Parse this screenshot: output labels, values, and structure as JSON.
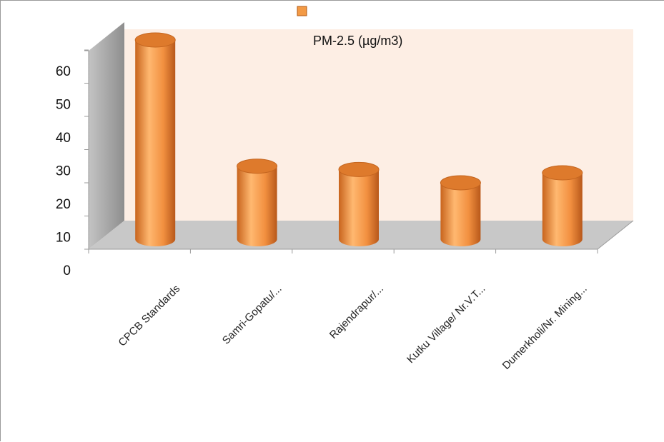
{
  "chart_data": {
    "type": "bar",
    "style": "3d-cylinder",
    "title": "",
    "xlabel": "",
    "ylabel": "",
    "categories": [
      "CPCB Standards",
      "Samri-Gopatu/...",
      "Rajendrapur/...",
      "Kutku Village/ Nr.V.T...",
      "Dumerkholi/Nr. Mining..."
    ],
    "series": [
      {
        "name": "PM-2.5 (µg/m3)",
        "values": [
          60,
          22,
          21,
          17,
          20
        ],
        "color": "#f39a45"
      }
    ],
    "y_ticks": [
      "0",
      "10",
      "20",
      "30",
      "40",
      "50",
      "60"
    ],
    "ylim": [
      0,
      70
    ],
    "grid": false,
    "legend": {
      "position": "top",
      "label": "PM-2.5 (µg/m3)"
    },
    "colors": {
      "wall": "#fdeee4",
      "floor": "#c8c8c8",
      "side": "#a8a8a8"
    }
  }
}
